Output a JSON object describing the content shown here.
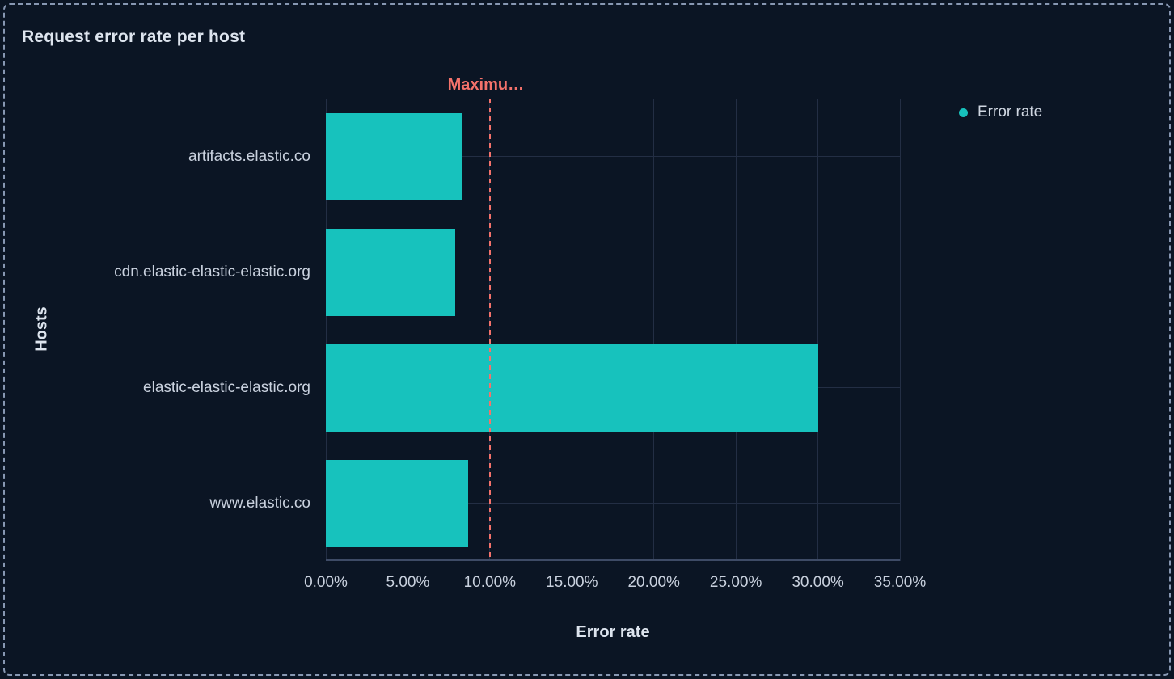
{
  "panel": {
    "title": "Request error rate per host"
  },
  "colors": {
    "background": "#0b1524",
    "bar": "#17c2bd",
    "threshold": "#f4726b",
    "grid": "#232e44",
    "axis_line": "#3e4b66",
    "text_primary": "#dde4ee",
    "text_secondary": "#c9d1de",
    "panel_border": "#8797b2"
  },
  "chart_data": {
    "type": "bar",
    "orientation": "horizontal",
    "title": "Request error rate per host",
    "xlabel": "Error rate",
    "ylabel": "Hosts",
    "categories": [
      "artifacts.elastic.co",
      "cdn.elastic-elastic-elastic.org",
      "elastic-elastic-elastic.org",
      "www.elastic.co"
    ],
    "series": [
      {
        "name": "Error rate",
        "color": "#17c2bd",
        "values": [
          8.3,
          7.9,
          30.0,
          8.7
        ]
      }
    ],
    "value_unit": "%",
    "xlim": [
      0,
      35
    ],
    "x_tick_values": [
      0,
      5,
      10,
      15,
      20,
      25,
      30,
      35
    ],
    "x_tick_labels": [
      "0.00%",
      "5.00%",
      "10.00%",
      "15.00%",
      "20.00%",
      "25.00%",
      "30.00%",
      "35.00%"
    ],
    "grid": true,
    "legend": {
      "position": "top-right",
      "items": [
        {
          "label": "Error rate",
          "color": "#17c2bd"
        }
      ]
    },
    "annotations": [
      {
        "type": "vline",
        "value": 10,
        "label": "Maximu…",
        "style": "dashed",
        "color": "#f4726b"
      }
    ]
  }
}
